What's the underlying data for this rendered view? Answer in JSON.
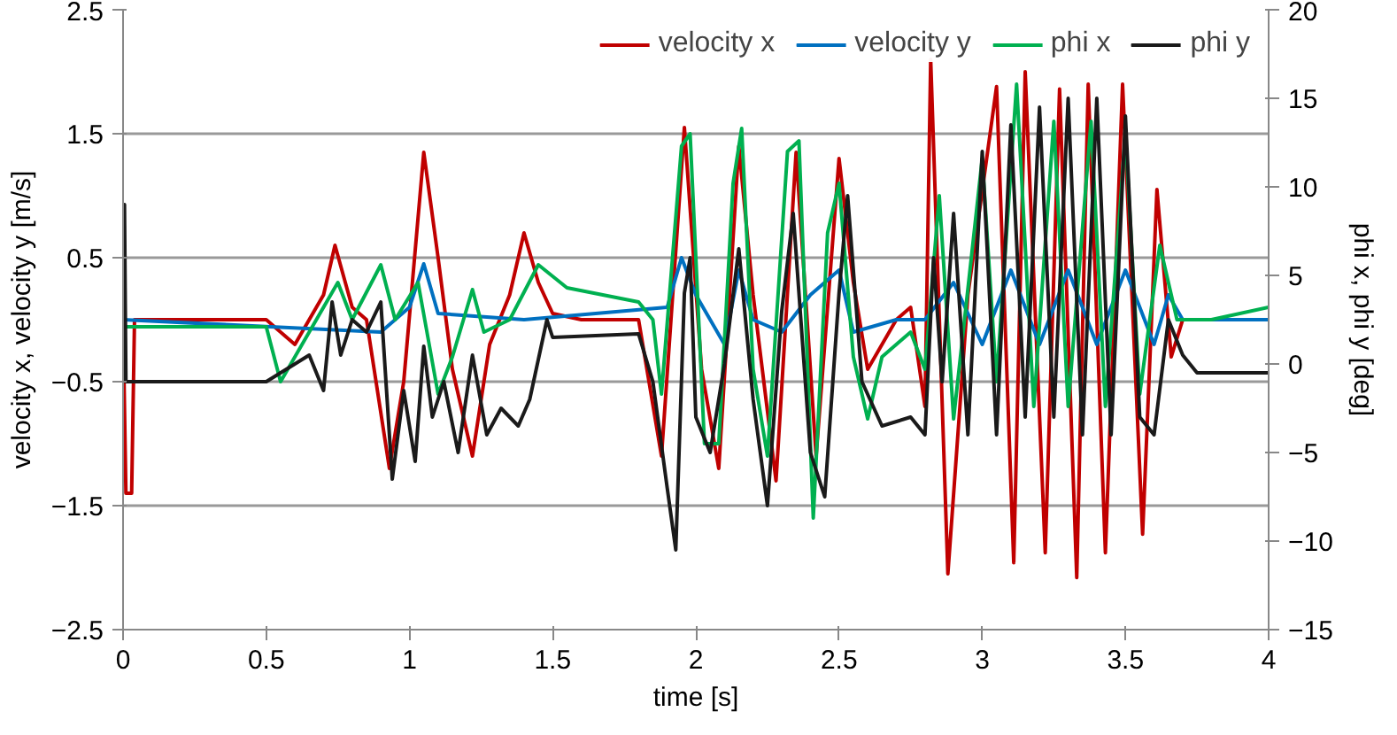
{
  "chart_data": {
    "type": "line",
    "xlabel": "time [s]",
    "ylabel": "velocity x, velocity y [m/s]",
    "y2label": "phi x, phi y [deg]",
    "xlim": [
      0,
      4
    ],
    "xticks": [
      0,
      0.5,
      1,
      1.5,
      2,
      2.5,
      3,
      3.5,
      4
    ],
    "ylim": [
      -2.5,
      2.5
    ],
    "yticks": [
      -2.5,
      -1.5,
      -0.5,
      0.5,
      1.5,
      2.5
    ],
    "y2lim": [
      -15,
      20
    ],
    "y2ticks": [
      -15,
      -10,
      -5,
      0,
      5,
      10,
      15,
      20
    ],
    "grid": "y",
    "legend": "top right",
    "line_style": "solid",
    "marker": "none",
    "series": [
      {
        "name": "velocity x",
        "color": "#c00000",
        "x": [
          0,
          0.01,
          0.03,
          0.04,
          0.5,
          0.6,
          0.7,
          0.74,
          0.8,
          0.85,
          0.93,
          0.98,
          1.05,
          1.1,
          1.15,
          1.22,
          1.28,
          1.35,
          1.4,
          1.45,
          1.5,
          1.6,
          1.8,
          1.88,
          1.96,
          2.02,
          2.08,
          2.15,
          2.2,
          2.28,
          2.35,
          2.42,
          2.5,
          2.55,
          2.6,
          2.7,
          2.75,
          2.8,
          2.82,
          2.88,
          2.95,
          3.05,
          3.11,
          3.15,
          3.22,
          3.27,
          3.33,
          3.37,
          3.43,
          3.49,
          3.56,
          3.61,
          3.66,
          3.7,
          4
        ],
        "values": [
          0,
          -1.4,
          -1.4,
          0,
          0,
          -0.2,
          0.2,
          0.6,
          0.1,
          0,
          -1.2,
          -0.5,
          1.35,
          0.5,
          -0.4,
          -1.1,
          -0.2,
          0.2,
          0.7,
          0.3,
          0.05,
          0,
          0,
          -1.1,
          1.55,
          -0.4,
          -1.2,
          1.4,
          0.2,
          -1.3,
          1.35,
          -1.1,
          1.3,
          0.3,
          -0.4,
          0,
          0.1,
          -0.7,
          2.1,
          -2.05,
          0.2,
          1.88,
          -1.96,
          2.0,
          -1.88,
          1.86,
          -2.08,
          1.9,
          -1.88,
          1.9,
          -1.73,
          1.05,
          -0.3,
          0,
          0
        ]
      },
      {
        "name": "velocity y",
        "color": "#0070c0",
        "x": [
          0,
          0.9,
          1.0,
          1.05,
          1.1,
          1.4,
          1.9,
          1.95,
          2.0,
          2.1,
          2.15,
          2.2,
          2.3,
          2.4,
          2.5,
          2.55,
          2.7,
          2.8,
          2.9,
          3.0,
          3.1,
          3.2,
          3.3,
          3.4,
          3.5,
          3.6,
          3.65,
          3.7,
          4
        ],
        "values": [
          0,
          -0.1,
          0.1,
          0.45,
          0.05,
          0,
          0.1,
          0.5,
          0.2,
          -0.2,
          0.4,
          0,
          -0.1,
          0.2,
          0.4,
          -0.1,
          0,
          0,
          0.3,
          -0.2,
          0.4,
          -0.2,
          0.4,
          -0.2,
          0.4,
          -0.2,
          0.2,
          0,
          0
        ]
      },
      {
        "name": "phi x",
        "color": "#00b050",
        "axis": "y2",
        "x": [
          0,
          0.5,
          0.55,
          0.6,
          0.75,
          0.8,
          0.9,
          0.95,
          1.03,
          1.1,
          1.15,
          1.22,
          1.26,
          1.35,
          1.45,
          1.55,
          1.8,
          1.85,
          1.88,
          1.95,
          1.98,
          2.03,
          2.08,
          2.13,
          2.16,
          2.2,
          2.25,
          2.32,
          2.36,
          2.41,
          2.46,
          2.5,
          2.55,
          2.6,
          2.65,
          2.75,
          2.8,
          2.85,
          2.9,
          3.0,
          3.05,
          3.12,
          3.18,
          3.25,
          3.3,
          3.38,
          3.43,
          3.5,
          3.55,
          3.62,
          3.68,
          3.8,
          4
        ],
        "values": [
          2.1,
          2.1,
          -1,
          0.4,
          4.6,
          2.5,
          5.6,
          2.5,
          4.6,
          -1.7,
          0.4,
          4.2,
          1.8,
          2.5,
          5.6,
          4.3,
          3.5,
          2.5,
          -1.7,
          12.3,
          13,
          -4.5,
          -4.5,
          10.2,
          13.3,
          -0.3,
          -5.2,
          12,
          12.6,
          -8.7,
          7.4,
          10.2,
          0.4,
          -3.1,
          0.4,
          1.8,
          -0.3,
          9.5,
          -3.1,
          11.6,
          -1,
          15.8,
          -2.4,
          13.7,
          -2.4,
          13.7,
          -2.4,
          13,
          -1.7,
          6.7,
          2.5,
          2.5,
          3.2
        ]
      },
      {
        "name": "phi y",
        "color": "#1a1a1a",
        "axis": "y2",
        "x": [
          0,
          0.005,
          0.01,
          0.5,
          0.6,
          0.65,
          0.7,
          0.73,
          0.76,
          0.8,
          0.85,
          0.9,
          0.94,
          0.98,
          1.02,
          1.05,
          1.08,
          1.12,
          1.17,
          1.22,
          1.27,
          1.32,
          1.38,
          1.42,
          1.48,
          1.5,
          1.8,
          1.85,
          1.9,
          1.93,
          1.96,
          1.98,
          2.0,
          2.05,
          2.1,
          2.15,
          2.2,
          2.25,
          2.3,
          2.34,
          2.4,
          2.45,
          2.5,
          2.53,
          2.58,
          2.65,
          2.75,
          2.8,
          2.83,
          2.86,
          2.9,
          2.95,
          3.0,
          3.05,
          3.1,
          3.15,
          3.2,
          3.25,
          3.3,
          3.35,
          3.4,
          3.45,
          3.5,
          3.55,
          3.6,
          3.65,
          3.7,
          3.75,
          4
        ],
        "values": [
          -1,
          9,
          -1,
          -1,
          0,
          0.5,
          -1.5,
          3.5,
          0.5,
          2.5,
          1.8,
          3.5,
          -6.5,
          -1.5,
          -5.5,
          1,
          -3,
          -1,
          -5,
          0.5,
          -4,
          -2.5,
          -3.5,
          -2,
          2.5,
          1.5,
          1.7,
          -1,
          -7,
          -10.5,
          4,
          6,
          -3,
          -5,
          0,
          6.5,
          -2,
          -8,
          3,
          8.5,
          -5,
          -7.5,
          4,
          9.5,
          -1,
          -3.5,
          -3,
          -4,
          6,
          -1,
          8.5,
          -4,
          12,
          -4,
          13.5,
          -3,
          14.5,
          -3,
          15,
          -4,
          15,
          -4,
          14,
          -3,
          -4,
          2.5,
          0.5,
          -0.5,
          -0.5
        ]
      }
    ]
  }
}
